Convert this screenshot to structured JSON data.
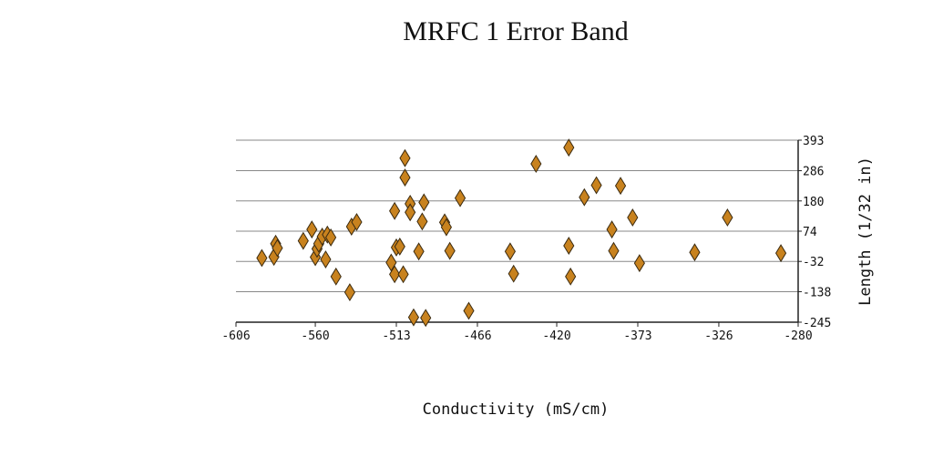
{
  "chart_data": {
    "type": "scatter",
    "title": "MRFC 1 Error Band",
    "xlabel": "Conductivity (mS/cm)",
    "ylabel": "Length (1/32 in)",
    "xlim": [
      -606,
      -280
    ],
    "ylim": [
      -245,
      393
    ],
    "x_ticks": [
      "-606",
      "-560",
      "-513",
      "-466",
      "-420",
      "-373",
      "-326",
      "-280"
    ],
    "y_ticks": [
      "393",
      "286",
      "180",
      "74",
      "-32",
      "-138",
      "-245"
    ],
    "grid": "horizontal",
    "y_axis_side": "right",
    "marker": "diamond",
    "marker_color": "#c8821e",
    "points": [
      {
        "x": -591,
        "y": -20
      },
      {
        "x": -584,
        "y": -16
      },
      {
        "x": -583,
        "y": 30
      },
      {
        "x": -582,
        "y": 15
      },
      {
        "x": -567,
        "y": 40
      },
      {
        "x": -562,
        "y": 80
      },
      {
        "x": -560,
        "y": -17
      },
      {
        "x": -559,
        "y": 12
      },
      {
        "x": -558,
        "y": 30
      },
      {
        "x": -556,
        "y": 55
      },
      {
        "x": -554,
        "y": -25
      },
      {
        "x": -553,
        "y": 62
      },
      {
        "x": -551,
        "y": 52
      },
      {
        "x": -548,
        "y": -85
      },
      {
        "x": -540,
        "y": -140
      },
      {
        "x": -539,
        "y": 90
      },
      {
        "x": -536,
        "y": 106
      },
      {
        "x": -516,
        "y": -36
      },
      {
        "x": -514,
        "y": -77
      },
      {
        "x": -514,
        "y": 145
      },
      {
        "x": -513,
        "y": 17
      },
      {
        "x": -511,
        "y": 20
      },
      {
        "x": -509,
        "y": -77
      },
      {
        "x": -508,
        "y": 262
      },
      {
        "x": -508,
        "y": 330
      },
      {
        "x": -505,
        "y": 170
      },
      {
        "x": -505,
        "y": 140
      },
      {
        "x": -503,
        "y": -228
      },
      {
        "x": -500,
        "y": 3
      },
      {
        "x": -498,
        "y": 108
      },
      {
        "x": -497,
        "y": 175
      },
      {
        "x": -496,
        "y": -230
      },
      {
        "x": -485,
        "y": 105
      },
      {
        "x": -484,
        "y": 88
      },
      {
        "x": -482,
        "y": 5
      },
      {
        "x": -476,
        "y": 190
      },
      {
        "x": -471,
        "y": -205
      },
      {
        "x": -447,
        "y": 3
      },
      {
        "x": -445,
        "y": -75
      },
      {
        "x": -432,
        "y": 310
      },
      {
        "x": -413,
        "y": 23
      },
      {
        "x": -412,
        "y": -85
      },
      {
        "x": -413,
        "y": 367
      },
      {
        "x": -404,
        "y": 193
      },
      {
        "x": -397,
        "y": 235
      },
      {
        "x": -388,
        "y": 80
      },
      {
        "x": -387,
        "y": 5
      },
      {
        "x": -383,
        "y": 233
      },
      {
        "x": -376,
        "y": 122
      },
      {
        "x": -372,
        "y": -38
      },
      {
        "x": -340,
        "y": 0
      },
      {
        "x": -321,
        "y": 122
      },
      {
        "x": -290,
        "y": -3
      }
    ]
  }
}
